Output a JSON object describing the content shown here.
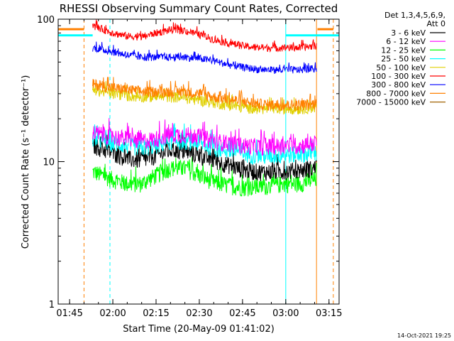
{
  "chart_data": {
    "type": "line",
    "title": "RHESSI Observing Summary Count Rates, Corrected",
    "xlabel": "Start Time (20-May-09 01:41:02)",
    "ylabel": "Corrected Count Rate (s⁻¹ detector⁻¹)",
    "yscale": "log",
    "ylim": [
      1,
      100
    ],
    "xlim": [
      "01:41:02",
      "03:18:30"
    ],
    "x_ticks": [
      "01:45",
      "02:00",
      "02:15",
      "02:30",
      "02:45",
      "03:00",
      "03:15"
    ],
    "y_ticks": [
      "1",
      "10",
      "100"
    ],
    "legend_header": [
      "Det 1,3,4,5,6,9,",
      "Att 0"
    ],
    "legend_position": "right",
    "footer": "14-Oct-2021 19:25",
    "data_start": "01:53:00",
    "data_end": "03:10:40",
    "series": [
      {
        "name": "3 - 6 keV",
        "color": "#000000",
        "x": [
          "01:53",
          "02:00",
          "02:05",
          "02:10",
          "02:15",
          "02:20",
          "02:25",
          "02:30",
          "02:35",
          "02:40",
          "02:45",
          "02:50",
          "02:55",
          "03:00",
          "03:05",
          "03:10"
        ],
        "values": [
          13,
          11.5,
          10.5,
          10.2,
          11,
          12,
          11.8,
          11,
          10.2,
          9.5,
          8.8,
          8.5,
          8.5,
          8.6,
          8.7,
          9
        ]
      },
      {
        "name": "6 - 12 keV",
        "color": "#ff00ff",
        "x": [
          "01:53",
          "02:00",
          "02:05",
          "02:10",
          "02:15",
          "02:20",
          "02:25",
          "02:30",
          "02:35",
          "02:40",
          "02:45",
          "02:50",
          "02:55",
          "03:00",
          "03:05",
          "03:10"
        ],
        "values": [
          16,
          15,
          14.5,
          14,
          14.5,
          15.5,
          15.5,
          15,
          14,
          13.5,
          13,
          12.8,
          12.8,
          13,
          13,
          13.5
        ]
      },
      {
        "name": "12 - 25 keV",
        "color": "#00ff00",
        "x": [
          "01:53",
          "02:00",
          "02:05",
          "02:10",
          "02:15",
          "02:20",
          "02:25",
          "02:30",
          "02:35",
          "02:40",
          "02:45",
          "02:50",
          "02:55",
          "03:00",
          "03:05",
          "03:10"
        ],
        "values": [
          8.5,
          7.5,
          7,
          7,
          8,
          9,
          9,
          8,
          7.2,
          6.8,
          6.6,
          6.6,
          6.8,
          7,
          7,
          7.5
        ]
      },
      {
        "name": "25 - 50 keV",
        "color": "#00ffff",
        "x": [
          "01:53",
          "02:00",
          "02:05",
          "02:10",
          "02:15",
          "02:20",
          "02:25",
          "02:30",
          "02:35",
          "02:40",
          "02:45",
          "02:50",
          "02:55",
          "03:00",
          "03:05",
          "03:10"
        ],
        "values": [
          14.5,
          13.5,
          13,
          12.5,
          13,
          14,
          14,
          13.5,
          12.5,
          12,
          11.5,
          11,
          11,
          11.2,
          11.3,
          11.5
        ]
      },
      {
        "name": "50 - 100 keV",
        "color": "#e0d000",
        "x": [
          "01:53",
          "02:00",
          "02:05",
          "02:10",
          "02:15",
          "02:20",
          "02:25",
          "02:30",
          "02:35",
          "02:40",
          "02:45",
          "02:50",
          "02:55",
          "03:00",
          "03:05",
          "03:10"
        ],
        "values": [
          32,
          30,
          29,
          28.5,
          28.5,
          28.5,
          28,
          27,
          26,
          25,
          24,
          23.5,
          23.5,
          23.5,
          23.5,
          24
        ]
      },
      {
        "name": "100 - 300 keV",
        "color": "#ff0000",
        "x": [
          "01:53",
          "02:00",
          "02:05",
          "02:10",
          "02:15",
          "02:20",
          "02:25",
          "02:30",
          "02:35",
          "02:40",
          "02:45",
          "02:50",
          "02:55",
          "03:00",
          "03:05",
          "03:10"
        ],
        "values": [
          90,
          80,
          76,
          75,
          80,
          84,
          83,
          78,
          72,
          68,
          65,
          63,
          63,
          63,
          63,
          65
        ]
      },
      {
        "name": "300 - 800 keV",
        "color": "#0000ff",
        "x": [
          "01:53",
          "02:00",
          "02:05",
          "02:10",
          "02:15",
          "02:20",
          "02:25",
          "02:30",
          "02:35",
          "02:40",
          "02:45",
          "02:50",
          "02:55",
          "03:00",
          "03:05",
          "03:10"
        ],
        "values": [
          63,
          59,
          56,
          54,
          54,
          54,
          54,
          53,
          51,
          48,
          46,
          44.5,
          44,
          44,
          44,
          45
        ]
      },
      {
        "name": "800 - 7000 keV",
        "color": "#ff8000",
        "x": [
          "01:53",
          "02:00",
          "02:05",
          "02:10",
          "02:15",
          "02:20",
          "02:25",
          "02:30",
          "02:35",
          "02:40",
          "02:45",
          "02:50",
          "02:55",
          "03:00",
          "03:05",
          "03:10"
        ],
        "values": [
          35,
          33,
          32,
          31,
          31,
          31,
          31,
          30,
          28.5,
          27.5,
          26.5,
          25.5,
          25,
          25,
          25,
          25.5
        ]
      },
      {
        "name": "7000 - 15000 keV",
        "color": "#a06000",
        "x": [],
        "values": []
      }
    ],
    "annotations": {
      "attenuator_lines": {
        "color": "#00ffff",
        "style": "solid",
        "x": [
          "01:41:02",
          "03:00:00",
          "03:18:30"
        ]
      },
      "saa_lines": {
        "color": "#00ffff",
        "style": "dashed",
        "x": [
          "01:59:00"
        ]
      },
      "night_lines": {
        "color": "#ff8000",
        "style": "dashed",
        "x": [
          "01:50:00",
          "03:16:30"
        ]
      },
      "night_solid_line": {
        "color": "#ff8000",
        "style": "solid",
        "x": [
          "03:10:40"
        ]
      },
      "top_bars": [
        {
          "color": "#ff8000",
          "x0": "01:41:02",
          "x1": "01:50:00",
          "y": 85
        },
        {
          "color": "#00ffff",
          "x0": "01:41:02",
          "x1": "01:53:00",
          "y": 77
        },
        {
          "color": "#00ffff",
          "x0": "03:00:00",
          "x1": "03:10:40",
          "y": 77
        },
        {
          "color": "#ff8000",
          "x0": "03:11:00",
          "x1": "03:16:30",
          "y": 85
        },
        {
          "color": "#00ffff",
          "x0": "03:10:40",
          "x1": "03:18:30",
          "y": 77
        }
      ]
    }
  }
}
